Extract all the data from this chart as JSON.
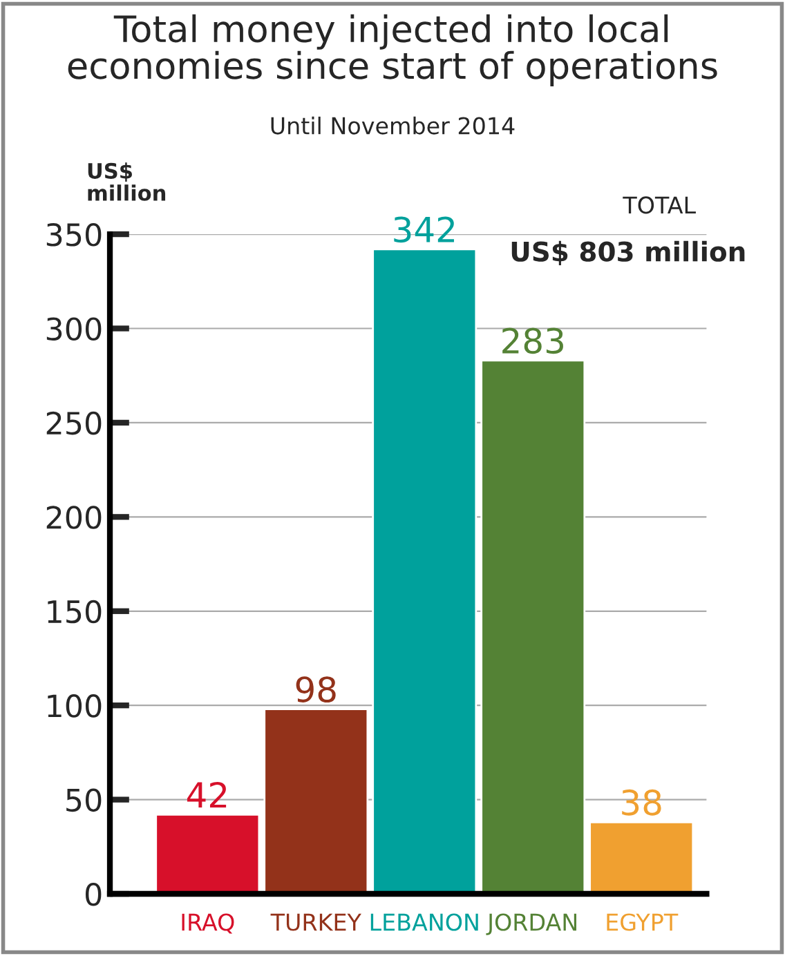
{
  "chart_data": {
    "type": "bar",
    "title": "Total money injected into local\neconomies since start of operations",
    "subtitle": "Until November 2014",
    "ylabel": "US$\nmillion",
    "categories": [
      "IRAQ",
      "TURKEY",
      "LEBANON",
      "JORDAN",
      "EGYPT"
    ],
    "values": [
      42,
      98,
      342,
      283,
      38
    ],
    "colors": [
      "#d7102a",
      "#93321a",
      "#00a19c",
      "#548235",
      "#f0a030"
    ],
    "ylim": [
      0,
      350
    ],
    "yticks": [
      0,
      50,
      100,
      150,
      200,
      250,
      300,
      350
    ],
    "grid": "y",
    "data_labels": true,
    "legend": false,
    "annotations": [
      "TOTAL",
      "US$ 803 million"
    ]
  }
}
